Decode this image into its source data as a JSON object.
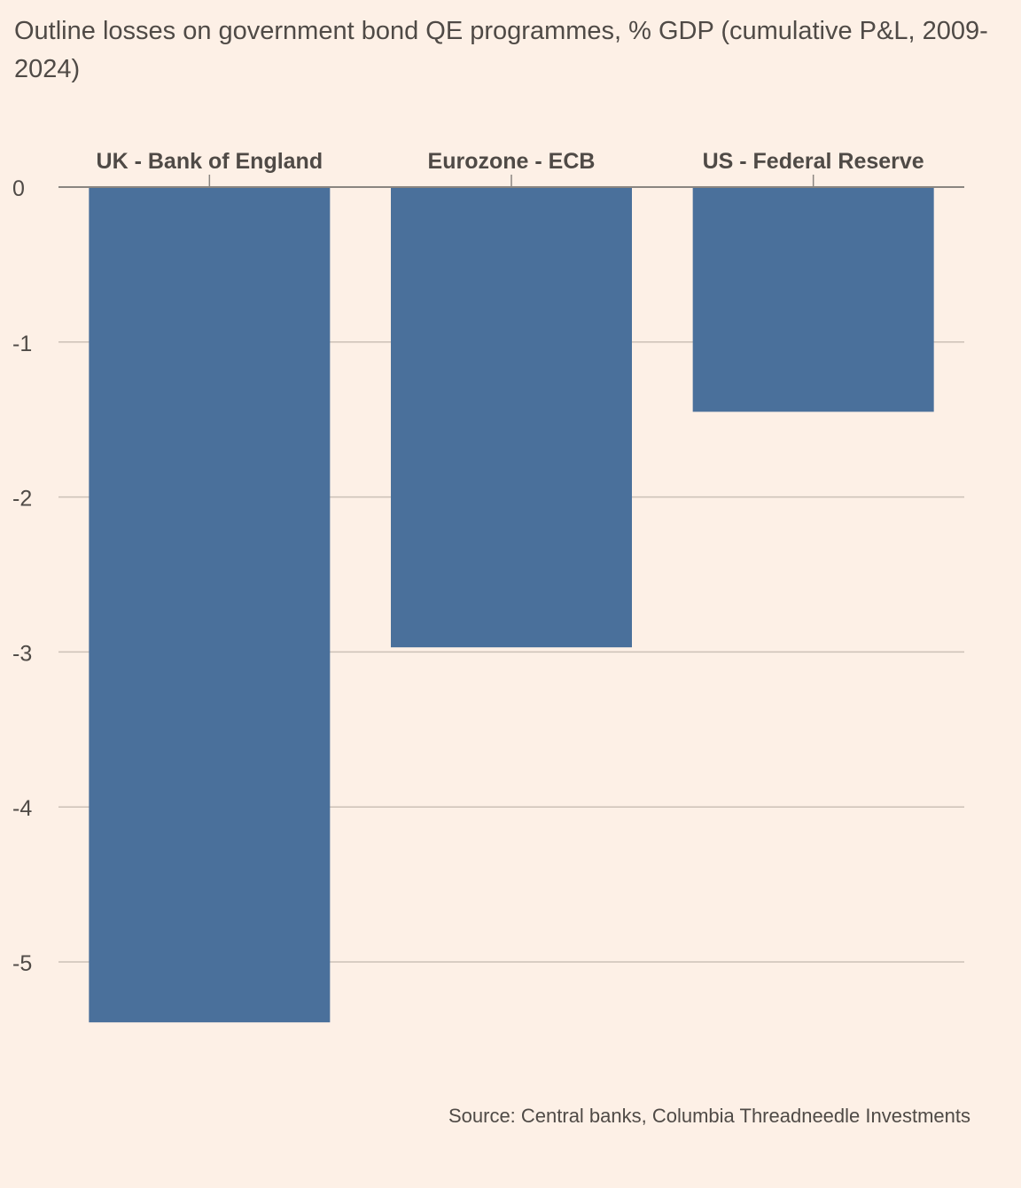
{
  "chart_data": {
    "type": "bar",
    "title": "Outline losses on government bond QE programmes, % GDP (cumulative P&L, 2009-2024)",
    "categories": [
      "UK - Bank of England",
      "Eurozone - ECB",
      "US - Federal Reserve"
    ],
    "values": [
      -5.39,
      -2.97,
      -1.45
    ],
    "ylim": [
      -5.39,
      0
    ],
    "yticks": [
      0,
      -1,
      -2,
      -3,
      -4,
      -5
    ],
    "ytick_labels": [
      "0",
      "-1",
      "-2",
      "-3",
      "-4",
      "-5"
    ],
    "xlabel": "",
    "ylabel": "",
    "grid": true,
    "category_labels_position": "top",
    "source": "Source: Central banks, Columbia Threadneedle Investments",
    "colors": {
      "bar": "#4a709b",
      "background": "#fdf0e6",
      "gridline": "#ccc1b7",
      "zero_line": "#8a8580",
      "text": "#4f4a46"
    }
  }
}
